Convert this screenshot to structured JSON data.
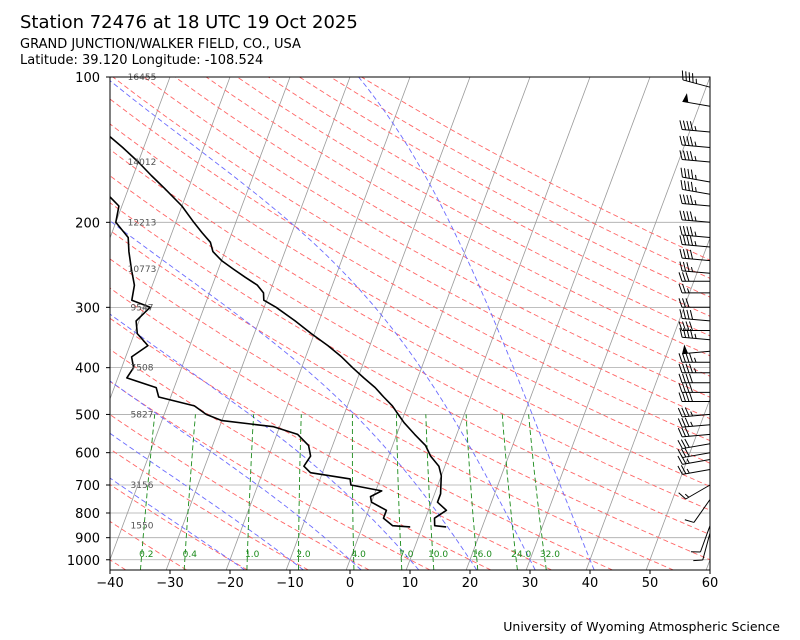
{
  "header": {
    "title": "Station 72476 at 18 UTC 19 Oct 2025",
    "location": "GRAND JUNCTION/WALKER FIELD, CO., USA",
    "coords": "Latitude: 39.120 Longitude: -108.524"
  },
  "footer": {
    "credit": "University of Wyoming Atmospheric Science"
  },
  "chart_data": {
    "type": "skew-t",
    "x_axis": {
      "label": "",
      "range": [
        -40,
        60
      ],
      "ticks": [
        "-40",
        "-30",
        "-20",
        "-10",
        "0",
        "10",
        "20",
        "30",
        "40",
        "50",
        "60"
      ]
    },
    "y_axis": {
      "label": "",
      "scale": "log",
      "range": [
        1050,
        100
      ],
      "ticks": [
        "100",
        "200",
        "300",
        "400",
        "500",
        "600",
        "700",
        "800",
        "900",
        "1000"
      ]
    },
    "grid": true,
    "colors": {
      "dry_adiabat": "#ff6666",
      "moist_adiabat": "#6b6bff",
      "mixing_ratio": "#1a8a1a",
      "isotherm": "#9a9a9a",
      "profile": "#000000"
    },
    "height_labels": [
      {
        "p": 100,
        "text": "16455"
      },
      {
        "p": 150,
        "text": "14012"
      },
      {
        "p": 200,
        "text": "12213"
      },
      {
        "p": 250,
        "text": "10773"
      },
      {
        "p": 300,
        "text": "9547"
      },
      {
        "p": 400,
        "text": "7508"
      },
      {
        "p": 500,
        "text": "5827"
      },
      {
        "p": 700,
        "text": "3156"
      },
      {
        "p": 850,
        "text": "1550"
      }
    ],
    "mixing_ratios": [
      "0.2",
      "0.4",
      "1.0",
      "2.0",
      "4.0",
      "7.0",
      "10.0",
      "16.0",
      "24.0",
      "32.0"
    ],
    "temperature": [
      {
        "p": 855,
        "t": 14.0
      },
      {
        "p": 850,
        "t": 12.0
      },
      {
        "p": 820,
        "t": 11.5
      },
      {
        "p": 790,
        "t": 13.0
      },
      {
        "p": 760,
        "t": 11.0
      },
      {
        "p": 730,
        "t": 11.0
      },
      {
        "p": 700,
        "t": 10.5
      },
      {
        "p": 670,
        "t": 10.0
      },
      {
        "p": 640,
        "t": 9.0
      },
      {
        "p": 610,
        "t": 7.0
      },
      {
        "p": 580,
        "t": 5.5
      },
      {
        "p": 550,
        "t": 3.0
      },
      {
        "p": 520,
        "t": 0.5
      },
      {
        "p": 500,
        "t": -1.0
      },
      {
        "p": 480,
        "t": -2.5
      },
      {
        "p": 460,
        "t": -4.5
      },
      {
        "p": 440,
        "t": -6.5
      },
      {
        "p": 420,
        "t": -9.0
      },
      {
        "p": 400,
        "t": -11.5
      },
      {
        "p": 380,
        "t": -14.0
      },
      {
        "p": 360,
        "t": -17.0
      },
      {
        "p": 340,
        "t": -20.5
      },
      {
        "p": 320,
        "t": -24.0
      },
      {
        "p": 300,
        "t": -28.0
      },
      {
        "p": 290,
        "t": -30.5
      },
      {
        "p": 280,
        "t": -31.0
      },
      {
        "p": 270,
        "t": -32.5
      },
      {
        "p": 260,
        "t": -35.0
      },
      {
        "p": 250,
        "t": -37.5
      },
      {
        "p": 240,
        "t": -40.0
      },
      {
        "p": 230,
        "t": -42.0
      },
      {
        "p": 220,
        "t": -43.0
      },
      {
        "p": 210,
        "t": -45.0
      },
      {
        "p": 200,
        "t": -47.0
      },
      {
        "p": 185,
        "t": -50.0
      },
      {
        "p": 170,
        "t": -54.0
      },
      {
        "p": 160,
        "t": -57.0
      },
      {
        "p": 150,
        "t": -60.0
      },
      {
        "p": 140,
        "t": -63.5
      },
      {
        "p": 130,
        "t": -67.5
      },
      {
        "p": 120,
        "t": -72.0
      },
      {
        "p": 110,
        "t": -77.0
      },
      {
        "p": 105,
        "t": -80.0
      },
      {
        "p": 100,
        "t": -82.0
      }
    ],
    "dewpoint": [
      {
        "p": 855,
        "t": 8.0
      },
      {
        "p": 850,
        "t": 5.0
      },
      {
        "p": 820,
        "t": 3.0
      },
      {
        "p": 790,
        "t": 3.0
      },
      {
        "p": 760,
        "t": 0.0
      },
      {
        "p": 740,
        "t": -0.5
      },
      {
        "p": 720,
        "t": 1.0
      },
      {
        "p": 700,
        "t": -4.5
      },
      {
        "p": 680,
        "t": -5.0
      },
      {
        "p": 660,
        "t": -12.0
      },
      {
        "p": 640,
        "t": -13.5
      },
      {
        "p": 610,
        "t": -13.0
      },
      {
        "p": 580,
        "t": -14.0
      },
      {
        "p": 550,
        "t": -16.5
      },
      {
        "p": 530,
        "t": -21.0
      },
      {
        "p": 515,
        "t": -30.0
      },
      {
        "p": 500,
        "t": -33.0
      },
      {
        "p": 480,
        "t": -35.5
      },
      {
        "p": 460,
        "t": -42.0
      },
      {
        "p": 440,
        "t": -43.0
      },
      {
        "p": 420,
        "t": -48.5
      },
      {
        "p": 400,
        "t": -48.0
      },
      {
        "p": 380,
        "t": -49.0
      },
      {
        "p": 360,
        "t": -47.0
      },
      {
        "p": 340,
        "t": -49.5
      },
      {
        "p": 320,
        "t": -50.5
      },
      {
        "p": 300,
        "t": -49.0
      },
      {
        "p": 290,
        "t": -52.5
      },
      {
        "p": 270,
        "t": -53.0
      },
      {
        "p": 250,
        "t": -54.5
      },
      {
        "p": 230,
        "t": -56.0
      },
      {
        "p": 215,
        "t": -57.0
      },
      {
        "p": 200,
        "t": -60.0
      },
      {
        "p": 185,
        "t": -60.5
      },
      {
        "p": 170,
        "t": -64.5
      },
      {
        "p": 160,
        "t": -65.5
      },
      {
        "p": 150,
        "t": -68.0
      },
      {
        "p": 140,
        "t": -71.0
      },
      {
        "p": 130,
        "t": -74.0
      },
      {
        "p": 120,
        "t": -78.0
      },
      {
        "p": 110,
        "t": -81.0
      },
      {
        "p": 105,
        "t": -81.0
      },
      {
        "p": 100,
        "t": -80.0
      }
    ],
    "wind_barbs": [
      {
        "p": 105,
        "dir": 285,
        "kt": 45
      },
      {
        "p": 115,
        "dir": 280,
        "kt": 50
      },
      {
        "p": 130,
        "dir": 275,
        "kt": 45
      },
      {
        "p": 140,
        "dir": 275,
        "kt": 45
      },
      {
        "p": 150,
        "dir": 275,
        "kt": 45
      },
      {
        "p": 165,
        "dir": 280,
        "kt": 45
      },
      {
        "p": 175,
        "dir": 280,
        "kt": 45
      },
      {
        "p": 185,
        "dir": 275,
        "kt": 45
      },
      {
        "p": 200,
        "dir": 275,
        "kt": 45
      },
      {
        "p": 215,
        "dir": 275,
        "kt": 45
      },
      {
        "p": 225,
        "dir": 275,
        "kt": 45
      },
      {
        "p": 240,
        "dir": 275,
        "kt": 40
      },
      {
        "p": 255,
        "dir": 275,
        "kt": 35
      },
      {
        "p": 265,
        "dir": 270,
        "kt": 30
      },
      {
        "p": 280,
        "dir": 270,
        "kt": 25
      },
      {
        "p": 300,
        "dir": 270,
        "kt": 30
      },
      {
        "p": 320,
        "dir": 275,
        "kt": 40
      },
      {
        "p": 335,
        "dir": 270,
        "kt": 40
      },
      {
        "p": 350,
        "dir": 275,
        "kt": 45
      },
      {
        "p": 370,
        "dir": 265,
        "kt": 50
      },
      {
        "p": 390,
        "dir": 270,
        "kt": 45
      },
      {
        "p": 410,
        "dir": 270,
        "kt": 45
      },
      {
        "p": 430,
        "dir": 270,
        "kt": 40
      },
      {
        "p": 450,
        "dir": 270,
        "kt": 40
      },
      {
        "p": 470,
        "dir": 270,
        "kt": 40
      },
      {
        "p": 500,
        "dir": 265,
        "kt": 35
      },
      {
        "p": 525,
        "dir": 265,
        "kt": 35
      },
      {
        "p": 550,
        "dir": 265,
        "kt": 30
      },
      {
        "p": 575,
        "dir": 260,
        "kt": 30
      },
      {
        "p": 600,
        "dir": 260,
        "kt": 30
      },
      {
        "p": 620,
        "dir": 260,
        "kt": 25
      },
      {
        "p": 650,
        "dir": 260,
        "kt": 25
      },
      {
        "p": 700,
        "dir": 240,
        "kt": 15
      },
      {
        "p": 750,
        "dir": 215,
        "kt": 10
      },
      {
        "p": 850,
        "dir": 200,
        "kt": 10
      },
      {
        "p": 880,
        "dir": 195,
        "kt": 10
      }
    ]
  }
}
